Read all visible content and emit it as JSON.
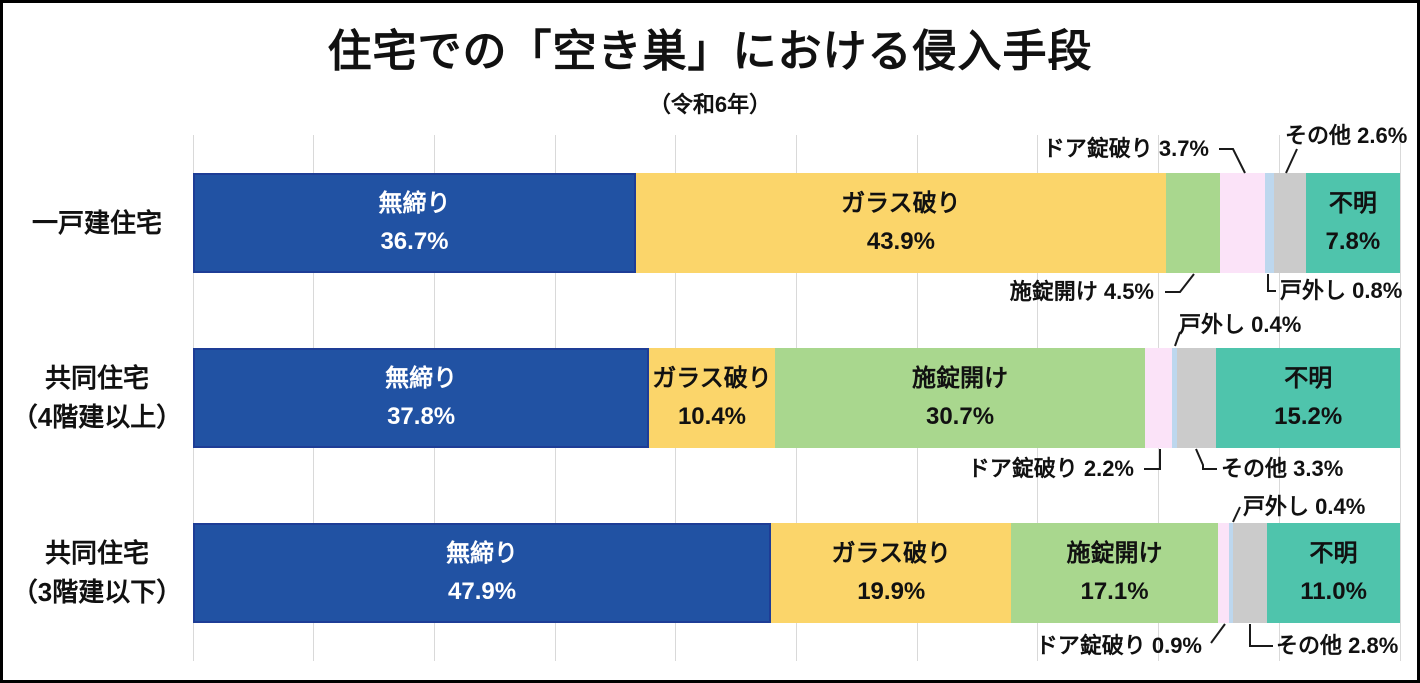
{
  "title": "住宅での「空き巣」における侵入手段",
  "subtitle": "（令和6年）",
  "chart_data": {
    "type": "bar",
    "variant": "horizontal-stacked-100pct",
    "title": "住宅での「空き巣」における侵入手段",
    "subtitle": "（令和6年）",
    "categories": [
      "一戸建住宅",
      "共同住宅（4階建以上）",
      "共同住宅（3階建以下）"
    ],
    "category_label_lines": [
      [
        "一戸建住宅"
      ],
      [
        "共同住宅",
        "（4階建以上）"
      ],
      [
        "共同住宅",
        "（3階建以下）"
      ]
    ],
    "xlim": [
      0,
      100
    ],
    "gridlines": {
      "every_percent": 10,
      "color": "#D9D9D9",
      "visible": true
    },
    "legend": "none",
    "series": [
      {
        "key": "unlocked",
        "name": "無締り",
        "color": "#2152A3",
        "border_color": "#1E3D96",
        "text_color": "#FFFFFF",
        "values": [
          36.7,
          37.8,
          47.9
        ],
        "labels": [
          "36.7%",
          "37.8%",
          "47.9%"
        ]
      },
      {
        "key": "glass-breaking",
        "name": "ガラス破り",
        "color": "#FBD56A",
        "text_color": "#111111",
        "values": [
          43.9,
          10.4,
          19.9
        ],
        "labels": [
          "43.9%",
          "10.4%",
          "19.9%"
        ]
      },
      {
        "key": "lock-opened",
        "name": "施錠開け",
        "color": "#A9D78E",
        "text_color": "#111111",
        "values": [
          4.5,
          30.7,
          17.1
        ],
        "labels": [
          "4.5%",
          "30.7%",
          "17.1%"
        ]
      },
      {
        "key": "door-lock-breaking",
        "name": "ドア錠破り",
        "color": "#FBE3F8",
        "text_color": "#111111",
        "values": [
          3.7,
          2.2,
          0.9
        ],
        "labels": [
          "3.7%",
          "2.2%",
          "0.9%"
        ]
      },
      {
        "key": "door-removal",
        "name": "戸外し",
        "color": "#BDD7EE",
        "text_color": "#111111",
        "values": [
          0.8,
          0.4,
          0.4
        ],
        "labels": [
          "0.8%",
          "0.4%",
          "0.4%"
        ]
      },
      {
        "key": "other",
        "name": "その他",
        "color": "#CBCBCB",
        "text_color": "#111111",
        "values": [
          2.6,
          3.3,
          2.8
        ],
        "labels": [
          "2.6%",
          "3.3%",
          "2.8%"
        ]
      },
      {
        "key": "unknown",
        "name": "不明",
        "color": "#4FC4AC",
        "text_color": "#111111",
        "values": [
          7.8,
          15.2,
          11.0
        ],
        "labels": [
          "7.8%",
          "15.2%",
          "11.0%"
        ]
      }
    ]
  }
}
